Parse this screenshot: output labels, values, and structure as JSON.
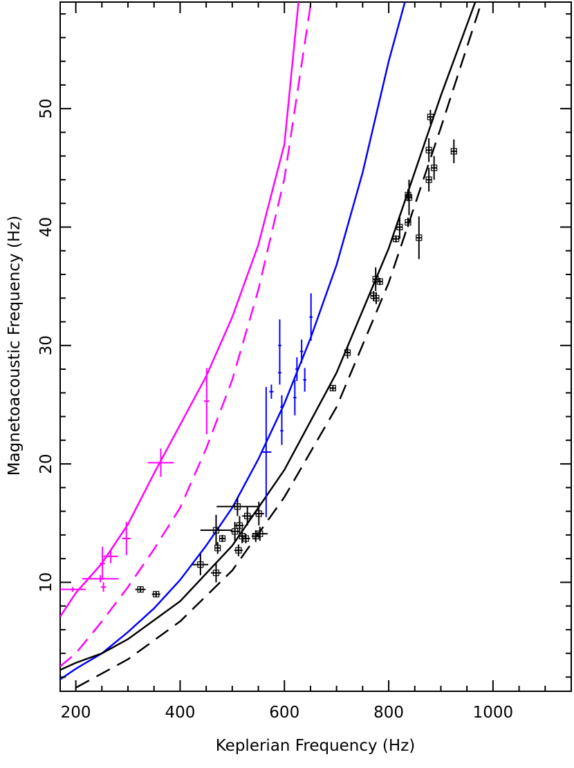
{
  "chart_data": {
    "type": "scatter",
    "x_label": "Keplerian Frequency (Hz)",
    "y_label": "Magnetoacoustic Frequency (Hz)",
    "xlim": [
      170,
      1150
    ],
    "ylim": [
      0.8,
      59
    ],
    "xticks": [
      200,
      400,
      600,
      800,
      1000
    ],
    "yticks": [
      10,
      20,
      30,
      40,
      50
    ],
    "xminorticks": [
      250,
      300,
      350,
      450,
      500,
      550,
      650,
      700,
      750,
      850,
      900,
      950,
      1050,
      1100
    ],
    "yminorticks": [
      2,
      4,
      6,
      8,
      12,
      14,
      16,
      18,
      22,
      24,
      26,
      28,
      32,
      34,
      36,
      38,
      42,
      44,
      46,
      48,
      52,
      54,
      56,
      58
    ],
    "series": [
      {
        "kind": "line",
        "color": "#ff00ff",
        "dash": false,
        "x": [
          170,
          200,
          250,
          300,
          350,
          400,
          450,
          500,
          550,
          600,
          627
        ],
        "values": [
          7.1,
          9.1,
          11.6,
          14.9,
          19.2,
          23.3,
          27.4,
          32.4,
          38.5,
          47.0,
          59
        ]
      },
      {
        "kind": "line",
        "color": "#ff00ff",
        "dash": true,
        "x": [
          170,
          200,
          250,
          300,
          350,
          400,
          450,
          500,
          550,
          600,
          651
        ],
        "values": [
          2.9,
          4.0,
          6.7,
          9.6,
          12.8,
          16.3,
          21.3,
          27.1,
          34.7,
          44.1,
          59
        ]
      },
      {
        "kind": "line",
        "color": "#0000ff",
        "dash": false,
        "x": [
          170,
          200,
          250,
          300,
          350,
          400,
          450,
          500,
          550,
          600,
          650,
          700,
          750,
          800,
          831
        ],
        "values": [
          1.8,
          2.7,
          4.0,
          5.8,
          7.8,
          10.2,
          13.1,
          16.3,
          20.4,
          25.1,
          30.6,
          36.8,
          44.6,
          54,
          59
        ]
      },
      {
        "kind": "line",
        "color": "#000000",
        "dash": false,
        "x": [
          170,
          200,
          250,
          300,
          400,
          500,
          600,
          700,
          800,
          900,
          966
        ],
        "values": [
          2.6,
          3.2,
          4.0,
          5.2,
          8.4,
          13.1,
          19.5,
          27.7,
          38.2,
          51.1,
          59
        ]
      },
      {
        "kind": "line",
        "color": "#000000",
        "dash": true,
        "x": [
          200,
          250,
          300,
          400,
          500,
          600,
          700,
          800,
          900,
          978
        ],
        "values": [
          1.1,
          2.3,
          3.5,
          6.7,
          11.0,
          17.2,
          24.8,
          35.3,
          48.4,
          59
        ]
      },
      {
        "kind": "points",
        "color": "#ff00ff",
        "marker": "plus",
        "x": [
          194,
          247,
          251,
          253,
          267,
          297,
          363,
          451
        ],
        "values": [
          9.4,
          10.3,
          11.6,
          9.6,
          12.2,
          13.7,
          20.1,
          25.3
        ],
        "xerr": [
          25,
          35,
          5,
          5,
          14,
          8,
          25,
          5
        ],
        "yerr": [
          0.2,
          0.3,
          1.4,
          0.4,
          0.6,
          1.4,
          1.2,
          2.8
        ]
      },
      {
        "kind": "points",
        "color": "#0000ff",
        "marker": "plus",
        "x": [
          565,
          575,
          591,
          591,
          595,
          595,
          620,
          624,
          633,
          639,
          651
        ],
        "values": [
          21,
          26.1,
          30,
          27.7,
          24.8,
          22.8,
          25.6,
          28.0,
          29.5,
          27.1,
          32.4
        ],
        "xerr": [
          10,
          4,
          3,
          3,
          3,
          3,
          3,
          3,
          3,
          3,
          3
        ],
        "yerr": [
          5.5,
          0.6,
          2.2,
          1,
          1,
          1.2,
          1.5,
          1,
          1,
          1,
          2
        ]
      },
      {
        "kind": "points",
        "color": "#000000",
        "marker": "square",
        "x": [
          324,
          354,
          439,
          469,
          472,
          469,
          481,
          505,
          510,
          512,
          514,
          519,
          526,
          529,
          545,
          551,
          553,
          693,
          721,
          771,
          775,
          776,
          783,
          814,
          821,
          837,
          839,
          837,
          858,
          877,
          877,
          880,
          887,
          925
        ],
        "values": [
          9.4,
          9.0,
          11.5,
          10.8,
          12.9,
          14.4,
          13.7,
          14.3,
          16.4,
          12.7,
          14.8,
          13.9,
          13.7,
          15.6,
          13.9,
          15.8,
          14.1,
          26.4,
          29.4,
          34.2,
          35.6,
          34.0,
          35.4,
          39.0,
          40.0,
          40.4,
          42.5,
          42.7,
          39.1,
          44.0,
          46.5,
          49.3,
          45.0,
          46.4
        ],
        "xerr": [
          10,
          8,
          15,
          10,
          5,
          30,
          5,
          8,
          40,
          8,
          8,
          8,
          8,
          10,
          8,
          10,
          15,
          5,
          5,
          5,
          5,
          5,
          5,
          5,
          5,
          5,
          5,
          5,
          5,
          5,
          5,
          5,
          5,
          5
        ],
        "yerr": [
          0.2,
          0.2,
          0.9,
          0.8,
          0.5,
          1.3,
          0.3,
          0.8,
          0.8,
          0.5,
          0.8,
          0.6,
          0.4,
          0.8,
          0.5,
          1,
          0.6,
          0.2,
          0.5,
          0.4,
          1,
          0.5,
          0.3,
          0.3,
          1,
          0.4,
          1.5,
          0.5,
          1.8,
          1,
          1,
          0.6,
          1,
          1
        ]
      }
    ]
  }
}
